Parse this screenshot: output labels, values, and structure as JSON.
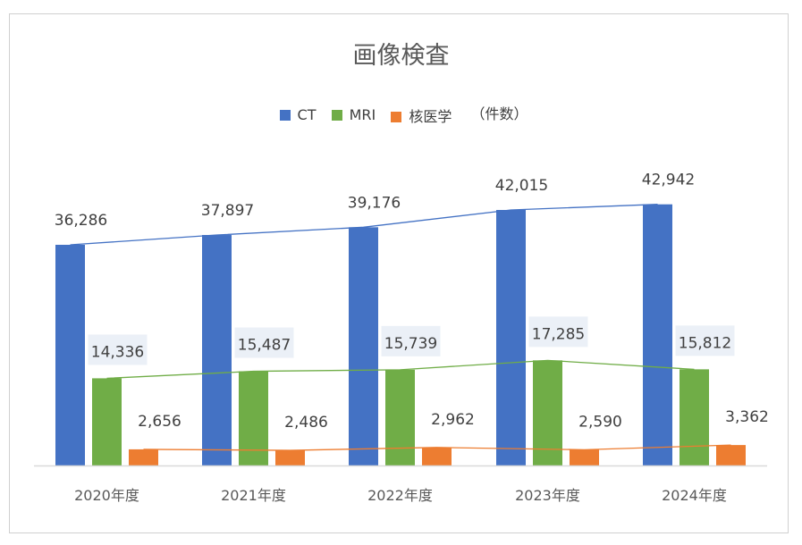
{
  "chart_data": {
    "type": "bar",
    "title": "画像検査",
    "unit_note": "（件数）",
    "categories": [
      "2020年度",
      "2021年度",
      "2022年度",
      "2023年度",
      "2024年度"
    ],
    "series": [
      {
        "name": "CT",
        "color": "#4472C4",
        "values": [
          36286,
          37897,
          39176,
          42015,
          42942
        ],
        "labels": [
          "36,286",
          "37,897",
          "39,176",
          "42,015",
          "42,942"
        ]
      },
      {
        "name": "MRI",
        "color": "#70AD47",
        "values": [
          14336,
          15487,
          15739,
          17285,
          15812
        ],
        "labels": [
          "14,336",
          "15,487",
          "15,739",
          "17,285",
          "15,812"
        ]
      },
      {
        "name": "核医学",
        "color": "#ED7D31",
        "values": [
          2656,
          2486,
          2962,
          2590,
          3362
        ],
        "labels": [
          "2,656",
          "2,486",
          "2,962",
          "2,590",
          "3,362"
        ]
      }
    ],
    "trendlines": true,
    "legend_position": "top",
    "grid": false
  }
}
